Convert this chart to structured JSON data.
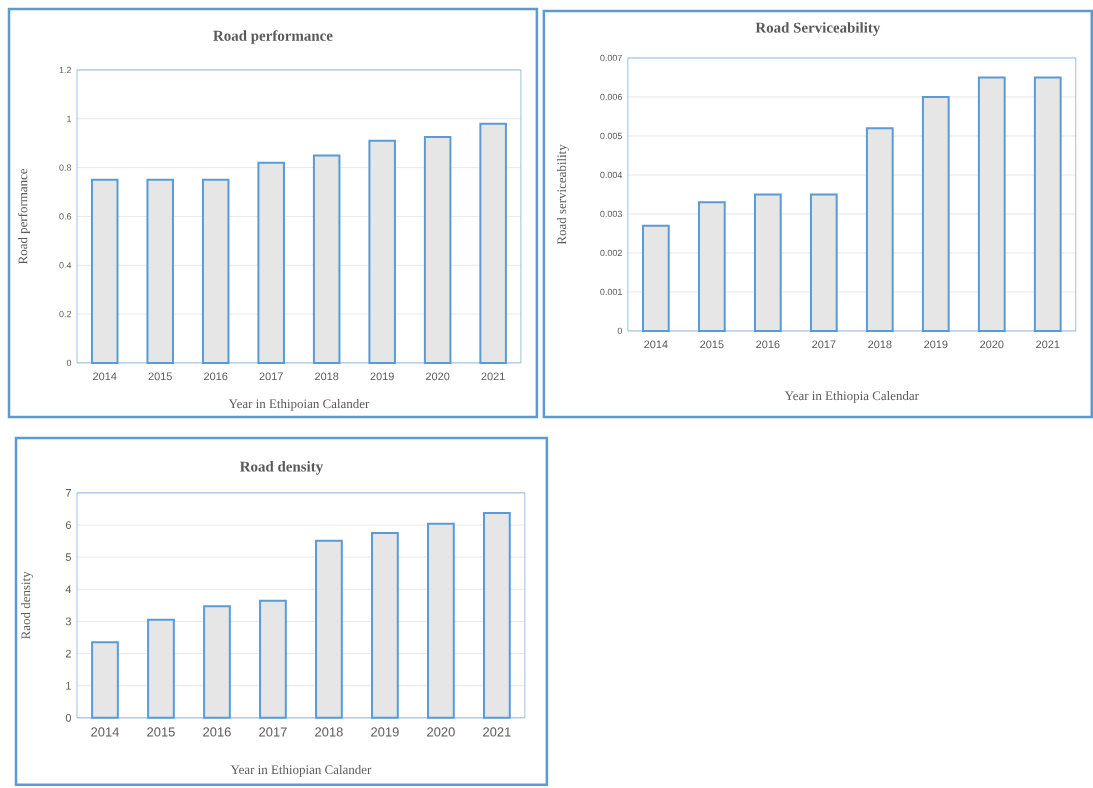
{
  "chart_data": [
    {
      "type": "bar",
      "title": "Road performance",
      "xlabel": "Year in Ethipoian Calander",
      "ylabel": "Road performance",
      "categories": [
        "2014",
        "2015",
        "2016",
        "2017",
        "2018",
        "2019",
        "2020",
        "2021"
      ],
      "values": [
        0.75,
        0.75,
        0.75,
        0.82,
        0.85,
        0.91,
        0.925,
        0.98
      ],
      "color": "#e6e6e6",
      "ylim": [
        0,
        1.2
      ],
      "yticks": [
        0,
        0.2,
        0.4,
        0.6,
        0.8,
        1,
        1.2
      ],
      "grid": "y"
    },
    {
      "type": "bar",
      "title": "Road Serviceability",
      "xlabel": "Year in Ethiopia Calendar",
      "ylabel": "Road serviceability",
      "categories": [
        "2014",
        "2015",
        "2016",
        "2017",
        "2018",
        "2019",
        "2020",
        "2021"
      ],
      "values": [
        0.0027,
        0.0033,
        0.0035,
        0.0035,
        0.0052,
        0.006,
        0.0065,
        0.0065
      ],
      "color": "#e6e6e6",
      "ylim": [
        0,
        0.007
      ],
      "yticks": [
        0,
        0.001,
        0.002,
        0.003,
        0.004,
        0.005,
        0.006,
        0.007
      ],
      "grid": "y"
    },
    {
      "type": "bar",
      "title": "Road density",
      "xlabel": "Year in Ethiopian Calander",
      "ylabel": "Raod density",
      "categories": [
        "2014",
        "2015",
        "2016",
        "2017",
        "2018",
        "2019",
        "2020",
        "2021"
      ],
      "values": [
        2.35,
        3.05,
        3.47,
        3.64,
        5.51,
        5.75,
        6.04,
        6.37
      ],
      "color": "#e6e6e6",
      "ylim": [
        0,
        7
      ],
      "yticks": [
        0,
        1,
        2,
        3,
        4,
        5,
        6,
        7
      ],
      "grid": "y"
    }
  ]
}
